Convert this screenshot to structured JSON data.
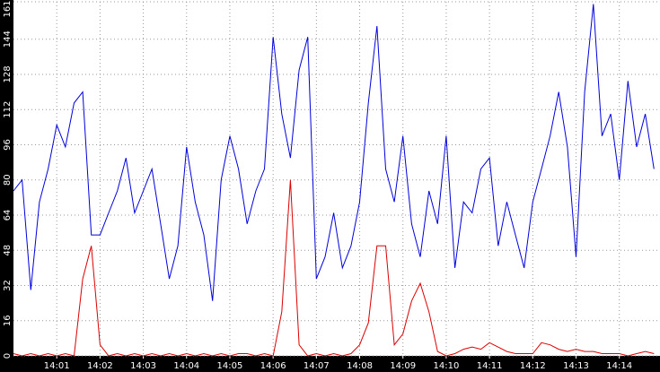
{
  "chart_data": {
    "type": "line",
    "x": [
      0,
      0.2,
      0.4,
      0.6,
      0.8,
      1,
      1.2,
      1.4,
      1.6,
      1.8,
      2,
      2.2,
      2.4,
      2.6,
      2.8,
      3,
      3.2,
      3.4,
      3.6,
      3.8,
      4,
      4.2,
      4.4,
      4.6,
      4.8,
      5,
      5.2,
      5.4,
      5.6,
      5.8,
      6,
      6.2,
      6.4,
      6.6,
      6.8,
      7,
      7.2,
      7.4,
      7.6,
      7.8,
      8,
      8.2,
      8.4,
      8.6,
      8.8,
      9,
      9.2,
      9.4,
      9.6,
      9.8,
      10,
      10.2,
      10.4,
      10.6,
      10.8,
      11,
      11.2,
      11.4,
      11.6,
      11.8,
      12,
      12.2,
      12.4,
      12.6,
      12.8,
      13,
      13.2,
      13.4,
      13.6,
      13.8,
      14,
      14.2,
      14.4,
      14.6,
      14.8
    ],
    "series": [
      {
        "color": "#0000dd",
        "values": [
          75,
          80,
          30,
          70,
          85,
          105,
          95,
          115,
          120,
          55,
          55,
          65,
          75,
          90,
          65,
          75,
          85,
          60,
          35,
          50,
          95,
          70,
          55,
          25,
          80,
          100,
          85,
          60,
          75,
          85,
          145,
          110,
          90,
          130,
          145,
          35,
          45,
          65,
          40,
          50,
          70,
          115,
          150,
          85,
          70,
          100,
          60,
          45,
          75,
          60,
          100,
          40,
          70,
          65,
          85,
          90,
          50,
          70,
          55,
          40,
          70,
          85,
          100,
          120,
          95,
          45,
          120,
          160,
          100,
          110,
          80,
          125,
          95,
          110,
          85
        ]
      },
      {
        "color": "#dd0000",
        "values": [
          1,
          0,
          1,
          0,
          1,
          0,
          1,
          0,
          35,
          50,
          5,
          0,
          1,
          0,
          1,
          0,
          1,
          0,
          1,
          0,
          1,
          0,
          1,
          0,
          1,
          0,
          1,
          1,
          0,
          1,
          0,
          20,
          80,
          5,
          0,
          1,
          0,
          1,
          0,
          1,
          5,
          15,
          50,
          50,
          5,
          10,
          25,
          33,
          20,
          2,
          0,
          1,
          3,
          4,
          3,
          6,
          4,
          2,
          1,
          1,
          1,
          6,
          5,
          3,
          2,
          3,
          2,
          2,
          1,
          1,
          1,
          0,
          1,
          2,
          1
        ]
      }
    ],
    "xlim": [
      0,
      14.94
    ],
    "xticks": [
      {
        "value": 1,
        "label": "14:01"
      },
      {
        "value": 2,
        "label": "14:02"
      },
      {
        "value": 3,
        "label": "14:03"
      },
      {
        "value": 4,
        "label": "14:04"
      },
      {
        "value": 5,
        "label": "14:05"
      },
      {
        "value": 6,
        "label": "14:06"
      },
      {
        "value": 7,
        "label": "14:07"
      },
      {
        "value": 8,
        "label": "14:08"
      },
      {
        "value": 9,
        "label": "14:09"
      },
      {
        "value": 10,
        "label": "14:10"
      },
      {
        "value": 11,
        "label": "14:11"
      },
      {
        "value": 12,
        "label": "14:12"
      },
      {
        "value": 13,
        "label": "14:13"
      },
      {
        "value": 14,
        "label": "14:14"
      }
    ],
    "ylim": [
      0,
      161
    ],
    "yticks": [
      0,
      16,
      32,
      48,
      64,
      80,
      96,
      112,
      128,
      144,
      161
    ],
    "grid": true
  }
}
